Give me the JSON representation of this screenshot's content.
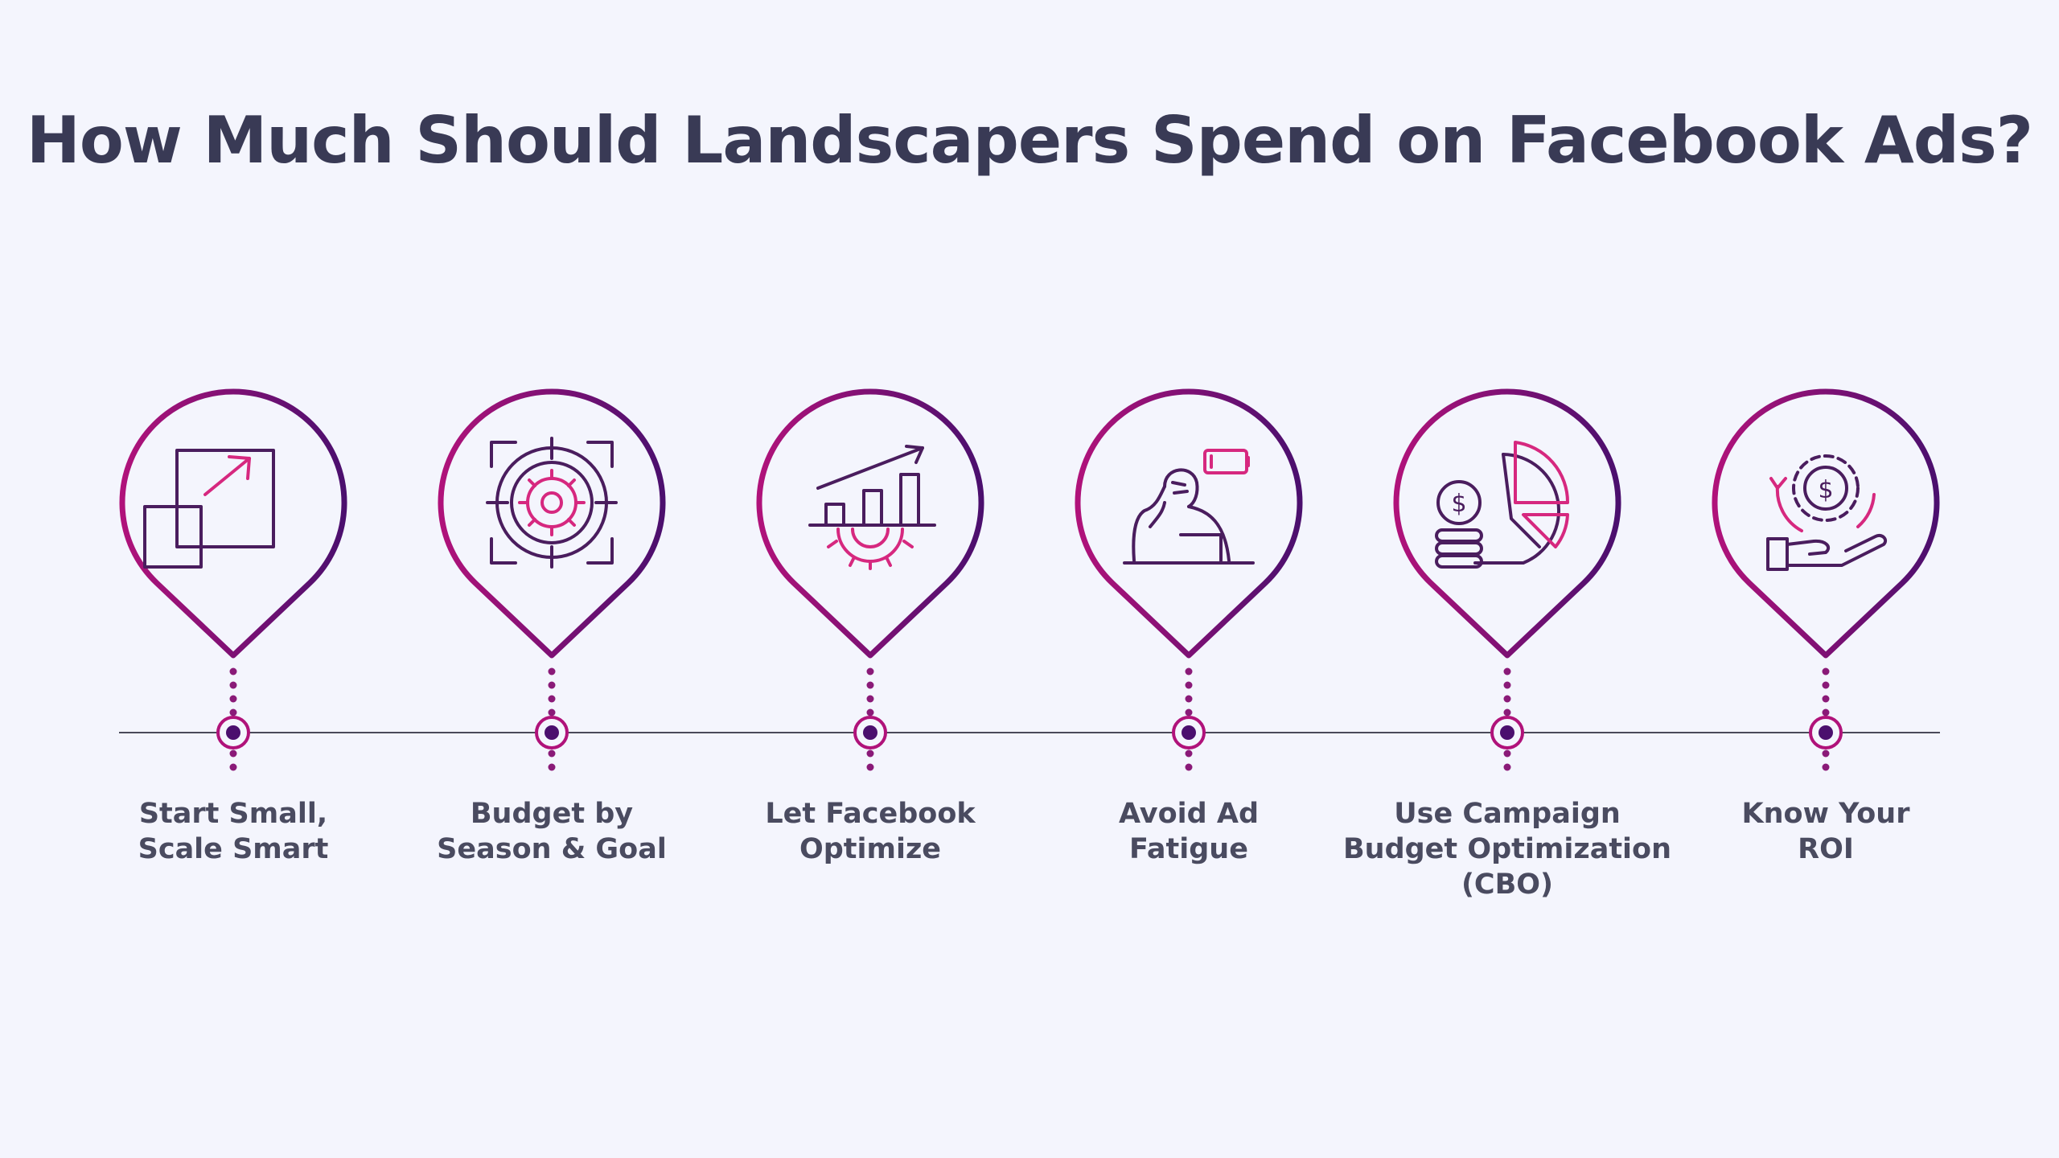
{
  "title": "How Much Should Landscapers Spend on Facebook Ads?",
  "colors": {
    "background": "#f4f5fd",
    "title": "#393a55",
    "label": "#4a4b60",
    "magenta": "#b0127a",
    "purple": "#4b0f6e",
    "pink": "#d6287f",
    "dark_icon": "#4a1d5e",
    "timeline": "#4a4a5a"
  },
  "steps": [
    {
      "label_lines": [
        "Start Small,",
        "Scale Smart"
      ],
      "icon": "scale-up-icon"
    },
    {
      "label_lines": [
        "Budget by",
        "Season & Goal"
      ],
      "icon": "target-gear-icon"
    },
    {
      "label_lines": [
        "Let Facebook",
        "Optimize"
      ],
      "icon": "growth-chart-gear-icon"
    },
    {
      "label_lines": [
        "Avoid Ad",
        "Fatigue"
      ],
      "icon": "tired-person-low-battery-icon"
    },
    {
      "label_lines": [
        "Use Campaign",
        "Budget Optimization",
        "(CBO)"
      ],
      "icon": "coins-pie-chart-icon"
    },
    {
      "label_lines": [
        "Know Your",
        "ROI"
      ],
      "icon": "hand-money-gear-icon"
    }
  ]
}
